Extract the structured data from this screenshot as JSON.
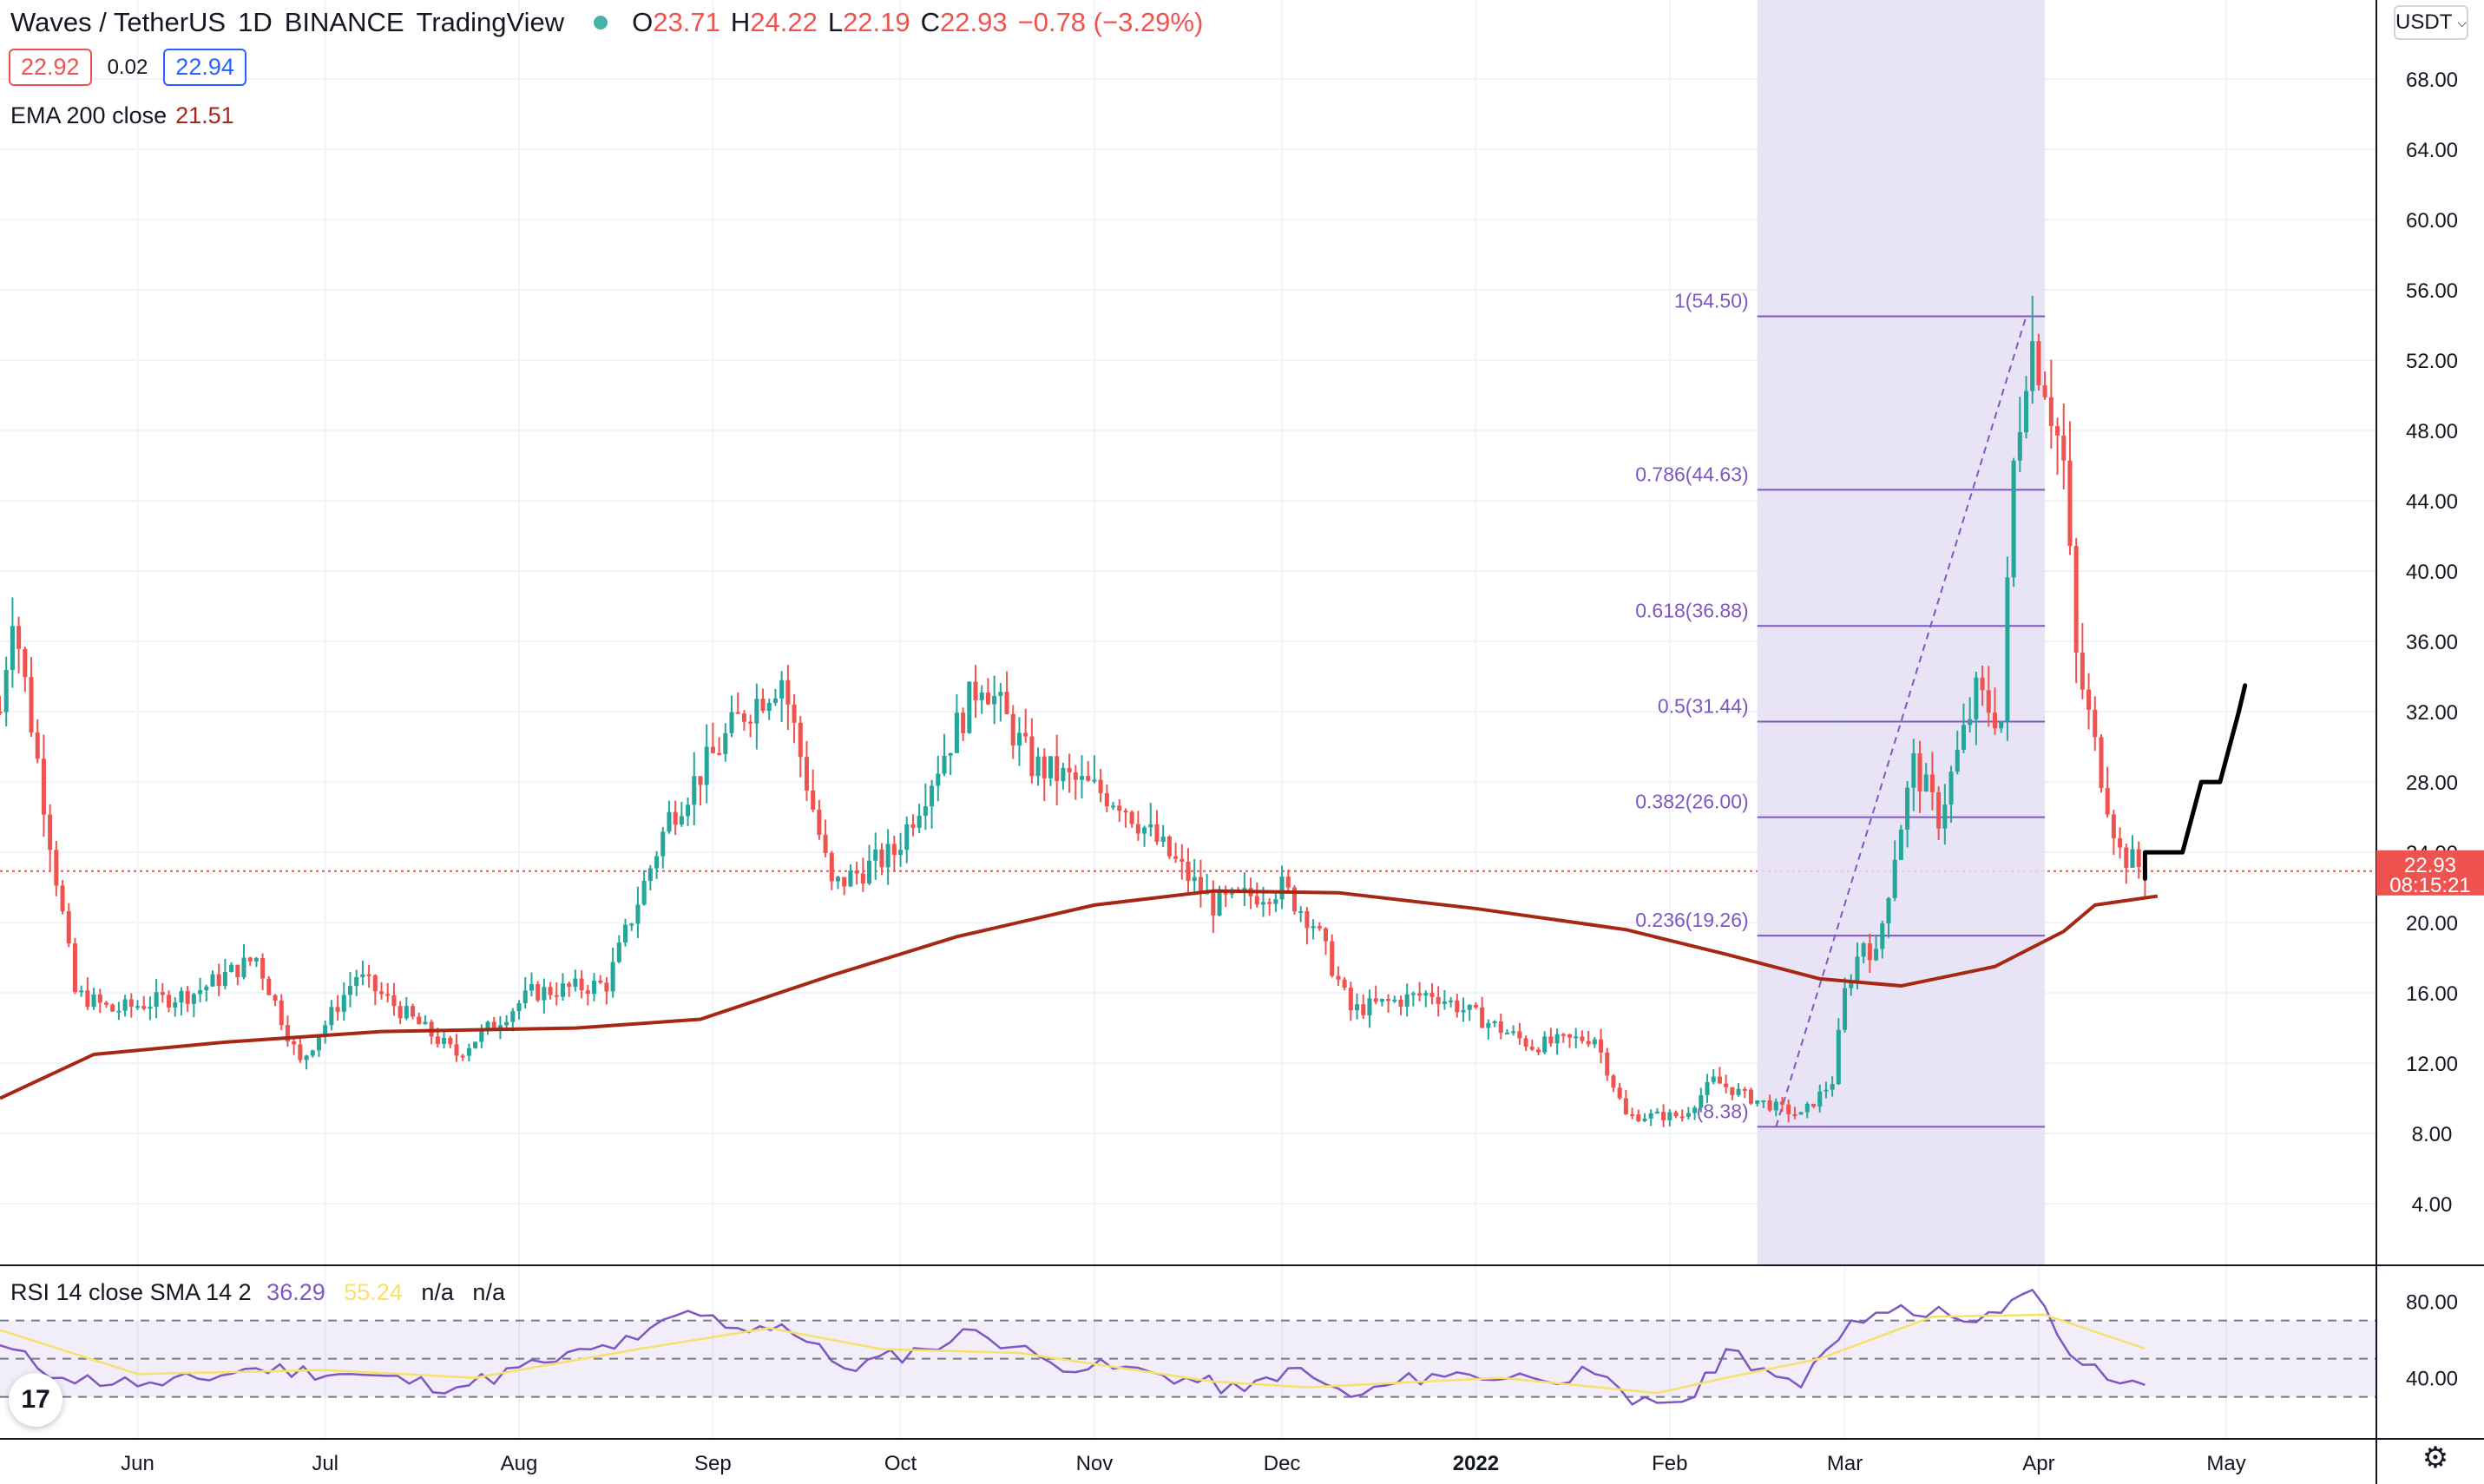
{
  "header": {
    "symbol": "Waves / TetherUS",
    "interval": "1D",
    "exchange": "BINANCE",
    "provider": "TradingView",
    "open_label": "O",
    "open": "23.71",
    "high_label": "H",
    "high": "24.22",
    "low_label": "L",
    "low": "22.19",
    "close_label": "C",
    "close": "22.93",
    "change": "−0.78 (−3.29%)"
  },
  "quote": {
    "bid": "22.92",
    "spread": "0.02",
    "ask": "22.94"
  },
  "currency_selector": {
    "label": "USDT",
    "chevron_icon": "chevron-down-icon"
  },
  "ema": {
    "label": "EMA 200 close",
    "value": "21.51",
    "color": "#a52714"
  },
  "rsi": {
    "label": "RSI 14 close SMA 14 2",
    "value": "36.29",
    "sma_value": "55.24",
    "na1": "n/a",
    "na2": "n/a",
    "rsi_color": "#7e57c2",
    "sma_color": "#f7e06c"
  },
  "last_price": {
    "value": "22.93",
    "countdown": "08:15:21",
    "color": "#ef5350"
  },
  "colors": {
    "up": "#26a69a",
    "down": "#ef5350",
    "fib": "#7e57c2",
    "fib_zone": "#e4dff3",
    "projection": "#000000"
  },
  "logo": {
    "icon": "tradingview-logo-icon",
    "text": "17"
  },
  "settings_icon": "gear-icon",
  "chart_data": [
    {
      "type": "candlestick",
      "title": "Waves / TetherUS 1D BINANCE",
      "x_axis_labels": [
        "Jun",
        "Jul",
        "Aug",
        "Sep",
        "Oct",
        "Nov",
        "Dec",
        "2022",
        "Feb",
        "Mar",
        "Apr",
        "May"
      ],
      "y_axis_labels": [
        "68.00",
        "64.00",
        "60.00",
        "56.00",
        "52.00",
        "48.00",
        "44.00",
        "40.00",
        "36.00",
        "32.00",
        "28.00",
        "24.00",
        "20.00",
        "16.00",
        "12.00",
        "8.00",
        "4.00"
      ],
      "ylim": [
        0.5,
        72.5
      ],
      "grid": true,
      "x_range": [
        "2021-05-10",
        "2022-05-25"
      ],
      "key_points": [
        {
          "date": "2021-05-10",
          "price": 32
        },
        {
          "date": "2021-05-12",
          "price": 38
        },
        {
          "date": "2021-05-17",
          "price": 27
        },
        {
          "date": "2021-05-22",
          "price": 16
        },
        {
          "date": "2021-05-28",
          "price": 15
        },
        {
          "date": "2021-06-10",
          "price": 16
        },
        {
          "date": "2021-06-20",
          "price": 18
        },
        {
          "date": "2021-06-27",
          "price": 12
        },
        {
          "date": "2021-07-06",
          "price": 17
        },
        {
          "date": "2021-07-22",
          "price": 12.5
        },
        {
          "date": "2021-08-03",
          "price": 16
        },
        {
          "date": "2021-08-15",
          "price": 16.5
        },
        {
          "date": "2021-08-25",
          "price": 26
        },
        {
          "date": "2021-09-06",
          "price": 32
        },
        {
          "date": "2021-09-12",
          "price": 34
        },
        {
          "date": "2021-09-20",
          "price": 22
        },
        {
          "date": "2021-09-30",
          "price": 24
        },
        {
          "date": "2021-10-14",
          "price": 34
        },
        {
          "date": "2021-10-22",
          "price": 29
        },
        {
          "date": "2021-11-05",
          "price": 27
        },
        {
          "date": "2021-11-20",
          "price": 21
        },
        {
          "date": "2021-12-01",
          "price": 22
        },
        {
          "date": "2021-12-06",
          "price": 20
        },
        {
          "date": "2021-12-12",
          "price": 15
        },
        {
          "date": "2021-12-25",
          "price": 16
        },
        {
          "date": "2022-01-10",
          "price": 13
        },
        {
          "date": "2022-01-20",
          "price": 13.5
        },
        {
          "date": "2022-01-25",
          "price": 9
        },
        {
          "date": "2022-02-03",
          "price": 9
        },
        {
          "date": "2022-02-08",
          "price": 11
        },
        {
          "date": "2022-02-14",
          "price": 10
        },
        {
          "date": "2022-02-22",
          "price": 9
        },
        {
          "date": "2022-02-27",
          "price": 11
        },
        {
          "date": "2022-03-01",
          "price": 16
        },
        {
          "date": "2022-03-04",
          "price": 19
        },
        {
          "date": "2022-03-06",
          "price": 18
        },
        {
          "date": "2022-03-09",
          "price": 24
        },
        {
          "date": "2022-03-12",
          "price": 29
        },
        {
          "date": "2022-03-16",
          "price": 26
        },
        {
          "date": "2022-03-22",
          "price": 33
        },
        {
          "date": "2022-03-26",
          "price": 31.5
        },
        {
          "date": "2022-03-28",
          "price": 46
        },
        {
          "date": "2022-03-30",
          "price": 52
        },
        {
          "date": "2022-03-31",
          "price": 53
        },
        {
          "date": "2022-04-02",
          "price": 51
        },
        {
          "date": "2022-04-05",
          "price": 46
        },
        {
          "date": "2022-04-07",
          "price": 35
        },
        {
          "date": "2022-04-10",
          "price": 30
        },
        {
          "date": "2022-04-12",
          "price": 27
        },
        {
          "date": "2022-04-14",
          "price": 24
        },
        {
          "date": "2022-04-18",
          "price": 22.93
        }
      ],
      "last_price": 22.93,
      "ema200": [
        {
          "date": "2021-05-10",
          "value": 10
        },
        {
          "date": "2021-05-25",
          "value": 12.5
        },
        {
          "date": "2021-06-15",
          "value": 13.2
        },
        {
          "date": "2021-07-10",
          "value": 13.8
        },
        {
          "date": "2021-08-10",
          "value": 14
        },
        {
          "date": "2021-08-30",
          "value": 14.5
        },
        {
          "date": "2021-09-20",
          "value": 17
        },
        {
          "date": "2021-10-10",
          "value": 19.2
        },
        {
          "date": "2021-11-01",
          "value": 21
        },
        {
          "date": "2021-11-20",
          "value": 21.8
        },
        {
          "date": "2021-12-10",
          "value": 21.7
        },
        {
          "date": "2022-01-01",
          "value": 20.8
        },
        {
          "date": "2022-01-25",
          "value": 19.6
        },
        {
          "date": "2022-02-10",
          "value": 18.2
        },
        {
          "date": "2022-02-25",
          "value": 16.8
        },
        {
          "date": "2022-03-10",
          "value": 16.4
        },
        {
          "date": "2022-03-25",
          "value": 17.5
        },
        {
          "date": "2022-04-05",
          "value": 19.5
        },
        {
          "date": "2022-04-10",
          "value": 21
        },
        {
          "date": "2022-04-20",
          "value": 21.51
        }
      ],
      "fib_retracement": {
        "from_date": "2022-02-15",
        "to_date": "2022-04-02",
        "levels": [
          {
            "label": "1(54.50)",
            "price": 54.5
          },
          {
            "label": "0.786(44.63)",
            "price": 44.63
          },
          {
            "label": "0.618(36.88)",
            "price": 36.88
          },
          {
            "label": "0.5(31.44)",
            "price": 31.44
          },
          {
            "label": "0.382(26.00)",
            "price": 26.0
          },
          {
            "label": "0.236(19.26)",
            "price": 19.26
          },
          {
            "label": "(8.38)",
            "price": 8.38
          }
        ]
      },
      "projection_path": [
        {
          "date": "2022-04-18",
          "price": 22.5
        },
        {
          "date": "2022-04-18",
          "price": 24
        },
        {
          "date": "2022-04-24",
          "price": 24
        },
        {
          "date": "2022-04-27",
          "price": 28
        },
        {
          "date": "2022-04-30",
          "price": 28
        },
        {
          "date": "2022-05-03",
          "price": 32
        },
        {
          "date": "2022-05-04",
          "price": 33.5
        }
      ]
    },
    {
      "type": "line",
      "title": "RSI 14 close SMA 14 2",
      "y_axis_labels": [
        "80.00",
        "40.00"
      ],
      "ylim": [
        8,
        98
      ],
      "bands": [
        70,
        50,
        30
      ],
      "series": [
        {
          "name": "RSI",
          "points": [
            {
              "date": "2021-05-10",
              "value": 57
            },
            {
              "date": "2021-05-20",
              "value": 40
            },
            {
              "date": "2021-06-05",
              "value": 36
            },
            {
              "date": "2021-06-20",
              "value": 45
            },
            {
              "date": "2021-07-05",
              "value": 42
            },
            {
              "date": "2021-07-22",
              "value": 35
            },
            {
              "date": "2021-08-05",
              "value": 48
            },
            {
              "date": "2021-08-20",
              "value": 60
            },
            {
              "date": "2021-08-28",
              "value": 75
            },
            {
              "date": "2021-09-05",
              "value": 66
            },
            {
              "date": "2021-09-12",
              "value": 68
            },
            {
              "date": "2021-09-22",
              "value": 45
            },
            {
              "date": "2021-10-05",
              "value": 55
            },
            {
              "date": "2021-10-13",
              "value": 65
            },
            {
              "date": "2021-10-25",
              "value": 48
            },
            {
              "date": "2021-11-10",
              "value": 43
            },
            {
              "date": "2021-11-25",
              "value": 33
            },
            {
              "date": "2021-12-02",
              "value": 45
            },
            {
              "date": "2021-12-12",
              "value": 30
            },
            {
              "date": "2021-12-25",
              "value": 42
            },
            {
              "date": "2022-01-10",
              "value": 40
            },
            {
              "date": "2022-01-20",
              "value": 42
            },
            {
              "date": "2022-01-26",
              "value": 26
            },
            {
              "date": "2022-02-05",
              "value": 30
            },
            {
              "date": "2022-02-10",
              "value": 55
            },
            {
              "date": "2022-02-16",
              "value": 45
            },
            {
              "date": "2022-02-22",
              "value": 35
            },
            {
              "date": "2022-03-02",
              "value": 70
            },
            {
              "date": "2022-03-10",
              "value": 78
            },
            {
              "date": "2022-03-18",
              "value": 72
            },
            {
              "date": "2022-03-26",
              "value": 74
            },
            {
              "date": "2022-03-31",
              "value": 86
            },
            {
              "date": "2022-04-06",
              "value": 52
            },
            {
              "date": "2022-04-12",
              "value": 39
            },
            {
              "date": "2022-04-18",
              "value": 36.29
            }
          ]
        },
        {
          "name": "SMA",
          "points": [
            {
              "date": "2021-05-10",
              "value": 65
            },
            {
              "date": "2021-06-01",
              "value": 42
            },
            {
              "date": "2021-07-01",
              "value": 44
            },
            {
              "date": "2021-07-25",
              "value": 40
            },
            {
              "date": "2021-08-20",
              "value": 55
            },
            {
              "date": "2021-09-10",
              "value": 66
            },
            {
              "date": "2021-09-28",
              "value": 55
            },
            {
              "date": "2021-10-20",
              "value": 53
            },
            {
              "date": "2021-11-20",
              "value": 38
            },
            {
              "date": "2021-12-05",
              "value": 35
            },
            {
              "date": "2022-01-05",
              "value": 40
            },
            {
              "date": "2022-01-30",
              "value": 32
            },
            {
              "date": "2022-02-10",
              "value": 40
            },
            {
              "date": "2022-02-25",
              "value": 50
            },
            {
              "date": "2022-03-15",
              "value": 72
            },
            {
              "date": "2022-04-02",
              "value": 73
            },
            {
              "date": "2022-04-18",
              "value": 55.24
            }
          ]
        }
      ]
    }
  ]
}
